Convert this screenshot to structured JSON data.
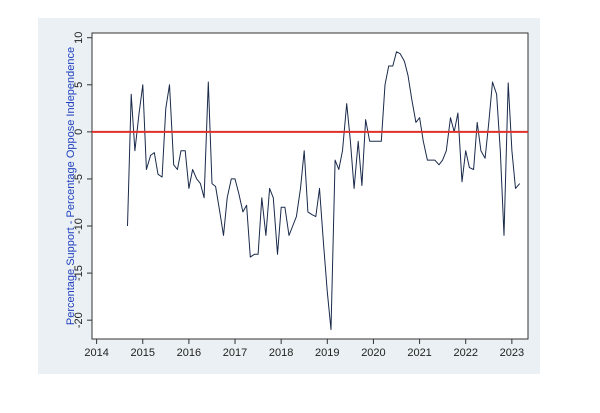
{
  "chart_data": {
    "type": "line",
    "title": "",
    "xlabel": "",
    "ylabel": "Percentage Support - Percentage Oppose Independence",
    "xlim": [
      2013.9,
      2023.35
    ],
    "ylim": [
      -22,
      10.5
    ],
    "x_ticks": [
      "2014",
      "2015",
      "2016",
      "2017",
      "2018",
      "2019",
      "2020",
      "2021",
      "2022",
      "2023"
    ],
    "y_ticks": [
      "10",
      "5",
      "0",
      "-5",
      "-10",
      "-15",
      "-20"
    ],
    "grid": false,
    "legend": "none",
    "reference_line": {
      "y": 0,
      "color": "#e0302a"
    },
    "series": [
      {
        "color": "#1a2a4a",
        "x": [
          2014.67,
          2014.75,
          2014.83,
          2014.92,
          2015.0,
          2015.08,
          2015.17,
          2015.25,
          2015.33,
          2015.42,
          2015.5,
          2015.58,
          2015.67,
          2015.75,
          2015.83,
          2015.92,
          2016.0,
          2016.08,
          2016.17,
          2016.25,
          2016.33,
          2016.42,
          2016.5,
          2016.58,
          2016.67,
          2016.75,
          2016.83,
          2016.92,
          2017.0,
          2017.08,
          2017.17,
          2017.25,
          2017.33,
          2017.42,
          2017.5,
          2017.58,
          2017.67,
          2017.75,
          2017.83,
          2017.92,
          2018.0,
          2018.08,
          2018.17,
          2018.25,
          2018.33,
          2018.42,
          2018.5,
          2018.58,
          2018.67,
          2018.75,
          2018.83,
          2018.92,
          2019.0,
          2019.08,
          2019.17,
          2019.25,
          2019.33,
          2019.42,
          2019.5,
          2019.58,
          2019.67,
          2019.75,
          2019.83,
          2019.92,
          2020.0,
          2020.08,
          2020.17,
          2020.25,
          2020.33,
          2020.42,
          2020.5,
          2020.58,
          2020.67,
          2020.75,
          2020.83,
          2020.92,
          2021.0,
          2021.08,
          2021.17,
          2021.25,
          2021.33,
          2021.42,
          2021.5,
          2021.58,
          2021.67,
          2021.75,
          2021.83,
          2021.92,
          2022.0,
          2022.08,
          2022.17,
          2022.25,
          2022.33,
          2022.42,
          2022.5,
          2022.58,
          2022.67,
          2022.75,
          2022.83,
          2022.92,
          2023.0,
          2023.08,
          2023.17
        ],
        "y": [
          -10,
          4,
          -2,
          2,
          5,
          -4,
          -2.5,
          -2.2,
          -4.5,
          -4.8,
          2.5,
          5,
          -3.5,
          -4,
          -2,
          -2,
          -6,
          -4,
          -5,
          -5.5,
          -7,
          5.3,
          -5.5,
          -5.8,
          -8.5,
          -11,
          -7,
          -5,
          -5,
          -6.5,
          -8.5,
          -7.8,
          -13.3,
          -13.0,
          -13.0,
          -7.0,
          -11.0,
          -6.0,
          -7.0,
          -13.0,
          -8.0,
          -8.0,
          -11.0,
          -10.0,
          -9.0,
          -6.0,
          -2.0,
          -8.5,
          -8.8,
          -9.0,
          -6.0,
          -12.0,
          -17.0,
          -21.0,
          -3.0,
          -4.0,
          -2.0,
          3.0,
          -1.0,
          -6.0,
          -1.0,
          -5.7,
          1.3,
          -1.0,
          -1.0,
          -1.0,
          -1.0,
          5.0,
          7.0,
          7.0,
          8.5,
          8.3,
          7.5,
          6.0,
          3.5,
          1.0,
          1.5,
          -1.0,
          -3.0,
          -3.0,
          -3.0,
          -3.5,
          -3.0,
          -2.0,
          1.5,
          0.0,
          2.0,
          -5.3,
          -2.0,
          -3.8,
          -4.0,
          1.0,
          -2.0,
          -2.8,
          1.0,
          5.3,
          4.0,
          -2.0,
          -11.0,
          5.2,
          -2.0,
          -6.0,
          -5.5
        ]
      }
    ]
  }
}
